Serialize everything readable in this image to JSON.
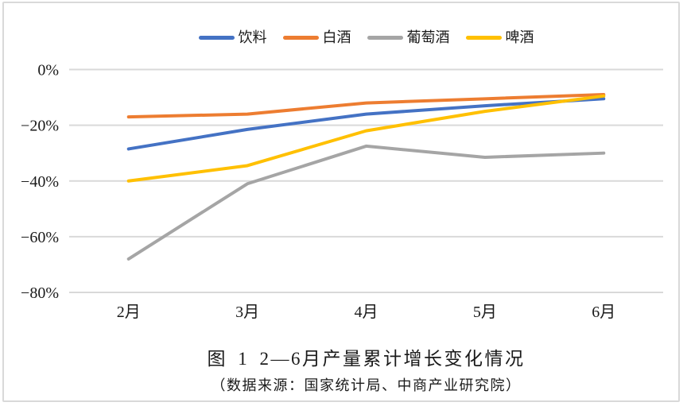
{
  "page": {
    "background": "#ffffff",
    "border_color": "#d9d9d9"
  },
  "chart_data": {
    "type": "line",
    "title": "图 1 2—6月产量累计增长变化情况",
    "subtitle": "（数据来源：国家统计局、中商产业研究院）",
    "categories": [
      "2月",
      "3月",
      "4月",
      "5月",
      "6月"
    ],
    "series": [
      {
        "name": "饮料",
        "color": "#4472C4",
        "values": [
          -28.5,
          -21.5,
          -16,
          -13,
          -10.5
        ]
      },
      {
        "name": "白酒",
        "color": "#ED7D31",
        "values": [
          -17,
          -16,
          -12,
          -10.5,
          -9
        ]
      },
      {
        "name": "葡萄酒",
        "color": "#A5A5A5",
        "values": [
          -68,
          -41,
          -27.5,
          -31.5,
          -30
        ]
      },
      {
        "name": "啤酒",
        "color": "#FFC000",
        "values": [
          -40,
          -34.5,
          -22,
          -15,
          -9.5
        ]
      }
    ],
    "yticks": [
      0,
      -20,
      -40,
      -60,
      -80
    ],
    "ytick_labels": [
      "0%",
      "−20%",
      "−40%",
      "−60%",
      "−80%"
    ],
    "ylim": [
      -80,
      0
    ],
    "grid": true,
    "gridline_color": "#d9d9d9",
    "legend_position": "top"
  }
}
